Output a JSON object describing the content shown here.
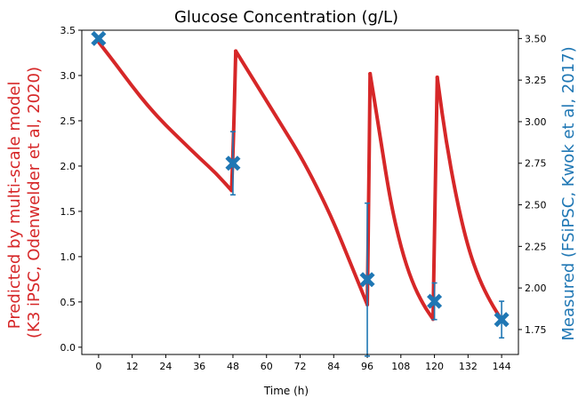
{
  "chart_data": {
    "type": "line",
    "title": "Glucose Concentration (g/L)",
    "xlabel": "Time (h)",
    "ylabel_left": [
      "Predicted by multi-scale model",
      "(K3 iPSC, Odenwelder et al, 2020)"
    ],
    "ylabel_right": "Measured (FSiPSC, Kwok et al, 2017)",
    "xlim": [
      -6,
      150
    ],
    "ylim_left": [
      -0.08,
      3.5
    ],
    "ylim_right": [
      1.6,
      3.55
    ],
    "xticks": [
      "0",
      "12",
      "24",
      "36",
      "48",
      "60",
      "72",
      "84",
      "96",
      "108",
      "120",
      "132",
      "144"
    ],
    "yticks_left": [
      "0.0",
      "0.5",
      "1.0",
      "1.5",
      "2.0",
      "2.5",
      "3.0",
      "3.5"
    ],
    "yticks_right": [
      "1.75",
      "2.00",
      "2.25",
      "2.50",
      "2.75",
      "3.00",
      "3.25",
      "3.50"
    ],
    "colors": {
      "model": "#d62728",
      "measured": "#1f77b4",
      "axis": "#000000"
    },
    "series": [
      {
        "axis": "left",
        "style": "line",
        "segments": [
          [
            [
              0,
              3.37
            ],
            [
              6,
              3.13
            ],
            [
              12,
              2.88
            ],
            [
              18,
              2.65
            ],
            [
              24,
              2.45
            ],
            [
              30,
              2.27
            ],
            [
              36,
              2.09
            ],
            [
              42,
              1.92
            ],
            [
              47.5,
              1.73
            ]
          ],
          [
            [
              47.5,
              1.73
            ],
            [
              48.2,
              2.3
            ],
            [
              49,
              3.27
            ]
          ],
          [
            [
              49,
              3.27
            ],
            [
              54,
              3.02
            ],
            [
              60,
              2.72
            ],
            [
              66,
              2.42
            ],
            [
              72,
              2.12
            ],
            [
              78,
              1.77
            ],
            [
              84,
              1.38
            ],
            [
              90,
              0.93
            ],
            [
              96,
              0.47
            ]
          ],
          [
            [
              96,
              0.47
            ],
            [
              96.5,
              1.6
            ],
            [
              97,
              3.02
            ]
          ],
          [
            [
              97,
              3.02
            ],
            [
              100,
              2.45
            ],
            [
              104,
              1.65
            ],
            [
              108,
              1.1
            ],
            [
              112,
              0.72
            ],
            [
              116,
              0.47
            ],
            [
              119.5,
              0.31
            ]
          ],
          [
            [
              119.5,
              0.31
            ],
            [
              120.2,
              1.6
            ],
            [
              121,
              2.98
            ]
          ],
          [
            [
              121,
              2.98
            ],
            [
              124,
              2.3
            ],
            [
              128,
              1.62
            ],
            [
              132,
              1.1
            ],
            [
              136,
              0.75
            ],
            [
              140,
              0.5
            ],
            [
              144,
              0.3
            ]
          ]
        ]
      },
      {
        "axis": "right",
        "style": "marker-x-errorbar",
        "points": [
          {
            "x": 0,
            "y": 3.5,
            "err": 0.0
          },
          {
            "x": 48,
            "y": 2.75,
            "err": 0.19
          },
          {
            "x": 96,
            "y": 2.05,
            "err": 0.46
          },
          {
            "x": 120,
            "y": 1.92,
            "err": 0.11
          },
          {
            "x": 144,
            "y": 1.81,
            "err": 0.11
          }
        ]
      }
    ]
  }
}
